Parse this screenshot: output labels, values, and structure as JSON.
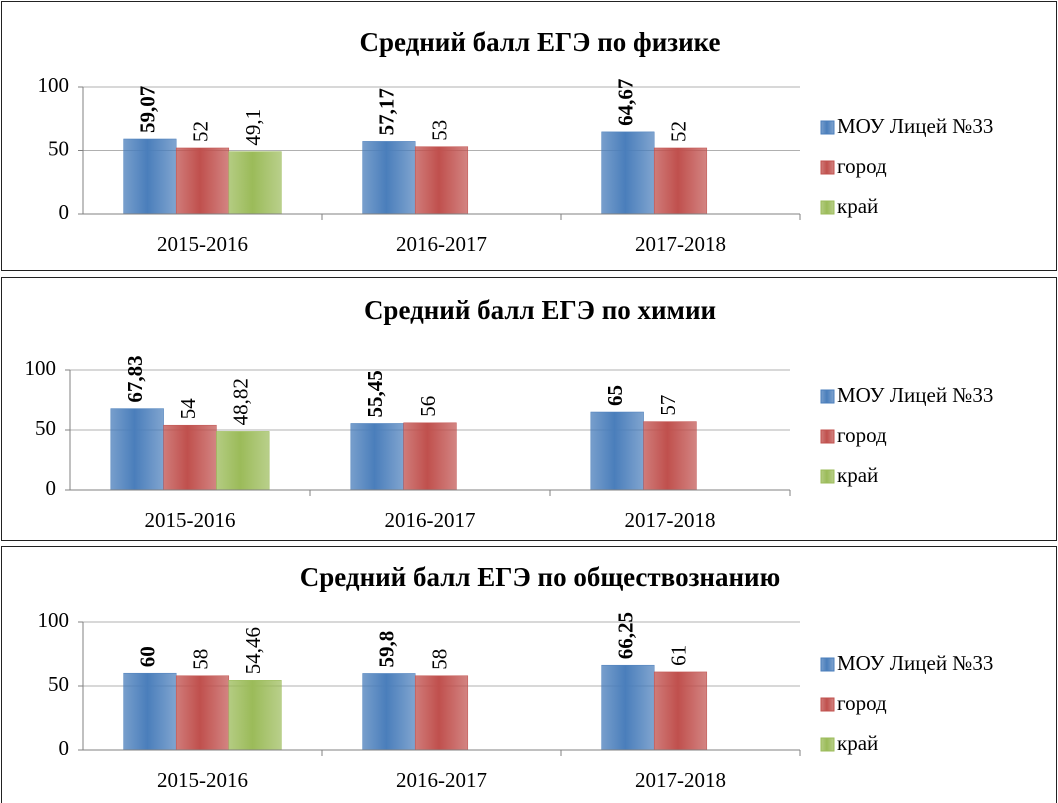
{
  "chart_data": [
    {
      "type": "bar",
      "title": "Средний балл ЕГЭ по физике",
      "categories": [
        "2015-2016",
        "2016-2017",
        "2017-2018"
      ],
      "series": [
        {
          "name": "МОУ Лицей №33",
          "color": "#4a7ebb",
          "values": [
            59.07,
            57.17,
            64.67
          ],
          "value_labels": [
            "59,07",
            "57,17",
            "64,67"
          ]
        },
        {
          "name": "город",
          "color": "#c0504d",
          "values": [
            52,
            53,
            52
          ],
          "value_labels": [
            "52",
            "53",
            "52"
          ]
        },
        {
          "name": "край",
          "color": "#9bbb59",
          "values": [
            49.1,
            null,
            null
          ],
          "value_labels": [
            "49,1",
            null,
            null
          ]
        }
      ],
      "ylim": [
        0,
        100
      ],
      "yticks": [
        0,
        50,
        100
      ],
      "grid": true,
      "legend": "right"
    },
    {
      "type": "bar",
      "title": "Средний балл ЕГЭ по химии",
      "categories": [
        "2015-2016",
        "2016-2017",
        "2017-2018"
      ],
      "series": [
        {
          "name": "МОУ Лицей №33",
          "color": "#4a7ebb",
          "values": [
            67.83,
            55.45,
            65
          ],
          "value_labels": [
            "67,83",
            "55,45",
            "65"
          ]
        },
        {
          "name": "город",
          "color": "#c0504d",
          "values": [
            54,
            56,
            57
          ],
          "value_labels": [
            "54",
            "56",
            "57"
          ]
        },
        {
          "name": "край",
          "color": "#9bbb59",
          "values": [
            48.82,
            null,
            null
          ],
          "value_labels": [
            "48,82",
            null,
            null
          ]
        }
      ],
      "ylim": [
        0,
        100
      ],
      "yticks": [
        0,
        50,
        100
      ],
      "grid": true,
      "legend": "right"
    },
    {
      "type": "bar",
      "title": "Средний балл ЕГЭ  по обществознанию",
      "categories": [
        "2015-2016",
        "2016-2017",
        "2017-2018"
      ],
      "series": [
        {
          "name": "МОУ Лицей №33",
          "color": "#4a7ebb",
          "values": [
            60,
            59.8,
            66.25
          ],
          "value_labels": [
            "60",
            "59,8",
            "66,25"
          ]
        },
        {
          "name": "город",
          "color": "#c0504d",
          "values": [
            58,
            58,
            61
          ],
          "value_labels": [
            "58",
            "58",
            "61"
          ]
        },
        {
          "name": "край",
          "color": "#9bbb59",
          "values": [
            54.46,
            null,
            null
          ],
          "value_labels": [
            "54,46",
            null,
            null
          ]
        }
      ],
      "ylim": [
        0,
        100
      ],
      "yticks": [
        0,
        50,
        100
      ],
      "grid": true,
      "legend": "right"
    }
  ]
}
